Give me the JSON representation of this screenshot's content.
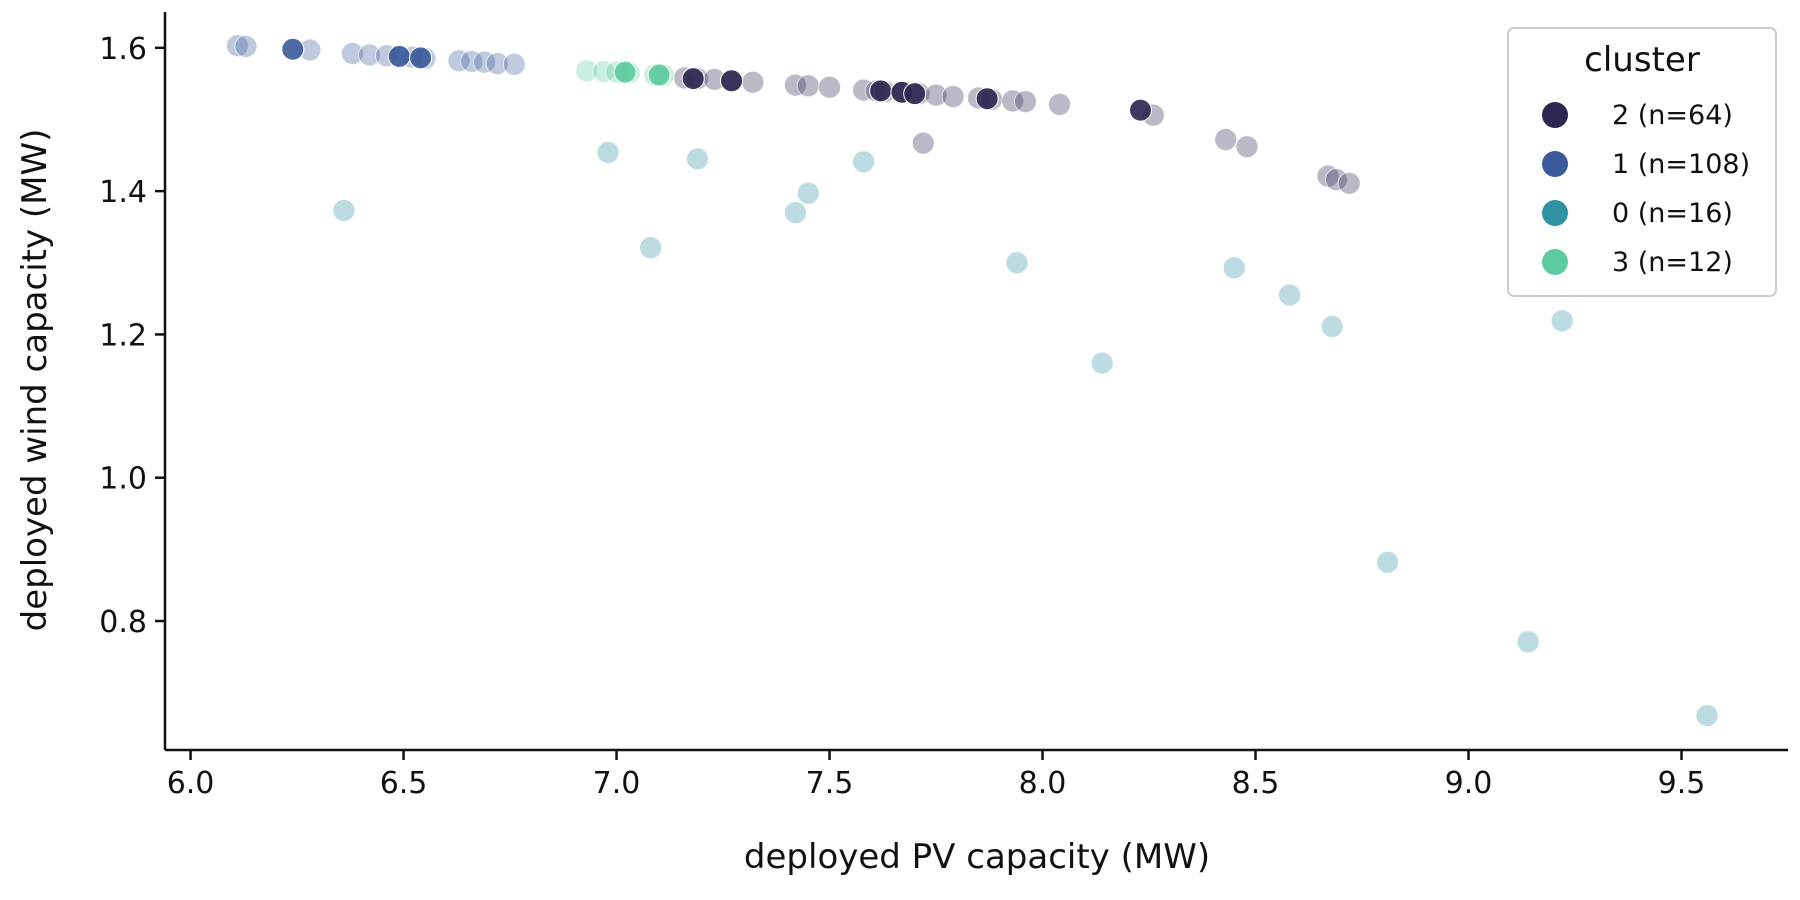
{
  "chart_data": {
    "type": "scatter",
    "xlabel": "deployed PV capacity (MW)",
    "ylabel": "deployed wind capacity (MW)",
    "xlim": [
      5.94,
      9.75
    ],
    "ylim": [
      0.62,
      1.65
    ],
    "xticks": [
      "6.0",
      "6.5",
      "7.0",
      "7.5",
      "8.0",
      "8.5",
      "9.0",
      "9.5"
    ],
    "yticks": [
      "0.8",
      "1.0",
      "1.2",
      "1.4",
      "1.6"
    ],
    "legend": {
      "title": "cluster",
      "position": "top-right"
    },
    "series": [
      {
        "name": "2 (n=64)",
        "color": "#2e2550",
        "points": [
          [
            7.16,
            1.558
          ],
          [
            7.19,
            1.557
          ],
          [
            7.23,
            1.556
          ],
          [
            7.27,
            1.554
          ],
          [
            7.32,
            1.552
          ],
          [
            7.42,
            1.548
          ],
          [
            7.45,
            1.547
          ],
          [
            7.5,
            1.545
          ],
          [
            7.58,
            1.541
          ],
          [
            7.61,
            1.54
          ],
          [
            7.63,
            1.539
          ],
          [
            7.67,
            1.538
          ],
          [
            7.71,
            1.536
          ],
          [
            7.75,
            1.534
          ],
          [
            7.79,
            1.532
          ],
          [
            7.85,
            1.53
          ],
          [
            7.88,
            1.528
          ],
          [
            7.93,
            1.526
          ],
          [
            7.96,
            1.525
          ],
          [
            8.04,
            1.521
          ],
          [
            8.26,
            1.506
          ],
          [
            7.72,
            1.467
          ],
          [
            8.43,
            1.472
          ],
          [
            8.48,
            1.462
          ],
          [
            8.67,
            1.421
          ],
          [
            8.69,
            1.416
          ],
          [
            8.72,
            1.411
          ]
        ],
        "highlight": [
          [
            7.18,
            1.557
          ],
          [
            7.27,
            1.554
          ],
          [
            7.62,
            1.54
          ],
          [
            7.67,
            1.538
          ],
          [
            7.7,
            1.536
          ],
          [
            7.87,
            1.529
          ],
          [
            8.23,
            1.513
          ]
        ]
      },
      {
        "name": "1 (n=108)",
        "color": "#3a5a9c",
        "points": [
          [
            6.11,
            1.603
          ],
          [
            6.13,
            1.602
          ],
          [
            6.28,
            1.597
          ],
          [
            6.38,
            1.592
          ],
          [
            6.42,
            1.59
          ],
          [
            6.46,
            1.589
          ],
          [
            6.49,
            1.588
          ],
          [
            6.52,
            1.587
          ],
          [
            6.55,
            1.585
          ],
          [
            6.63,
            1.582
          ],
          [
            6.66,
            1.581
          ],
          [
            6.69,
            1.58
          ],
          [
            6.72,
            1.578
          ],
          [
            6.76,
            1.577
          ]
        ],
        "highlight": [
          [
            6.24,
            1.598
          ],
          [
            6.49,
            1.588
          ],
          [
            6.54,
            1.586
          ]
        ]
      },
      {
        "name": "0 (n=16)",
        "color": "#2f93a4",
        "points": [
          [
            6.36,
            1.373
          ],
          [
            6.98,
            1.454
          ],
          [
            7.08,
            1.321
          ],
          [
            7.19,
            1.445
          ],
          [
            7.42,
            1.37
          ],
          [
            7.45,
            1.397
          ],
          [
            7.58,
            1.441
          ],
          [
            7.94,
            1.3
          ],
          [
            8.14,
            1.16
          ],
          [
            8.45,
            1.293
          ],
          [
            8.58,
            1.255
          ],
          [
            8.68,
            1.211
          ],
          [
            8.81,
            0.882
          ],
          [
            9.14,
            0.771
          ],
          [
            9.22,
            1.219
          ],
          [
            9.56,
            0.668
          ]
        ],
        "highlight": []
      },
      {
        "name": "3 (n=12)",
        "color": "#5ccba0",
        "points": [
          [
            6.93,
            1.568
          ],
          [
            6.97,
            1.567
          ],
          [
            7.0,
            1.566
          ],
          [
            7.03,
            1.565
          ],
          [
            7.09,
            1.562
          ],
          [
            7.11,
            1.562
          ]
        ],
        "highlight": [
          [
            7.02,
            1.566
          ],
          [
            7.1,
            1.562
          ]
        ]
      }
    ]
  }
}
